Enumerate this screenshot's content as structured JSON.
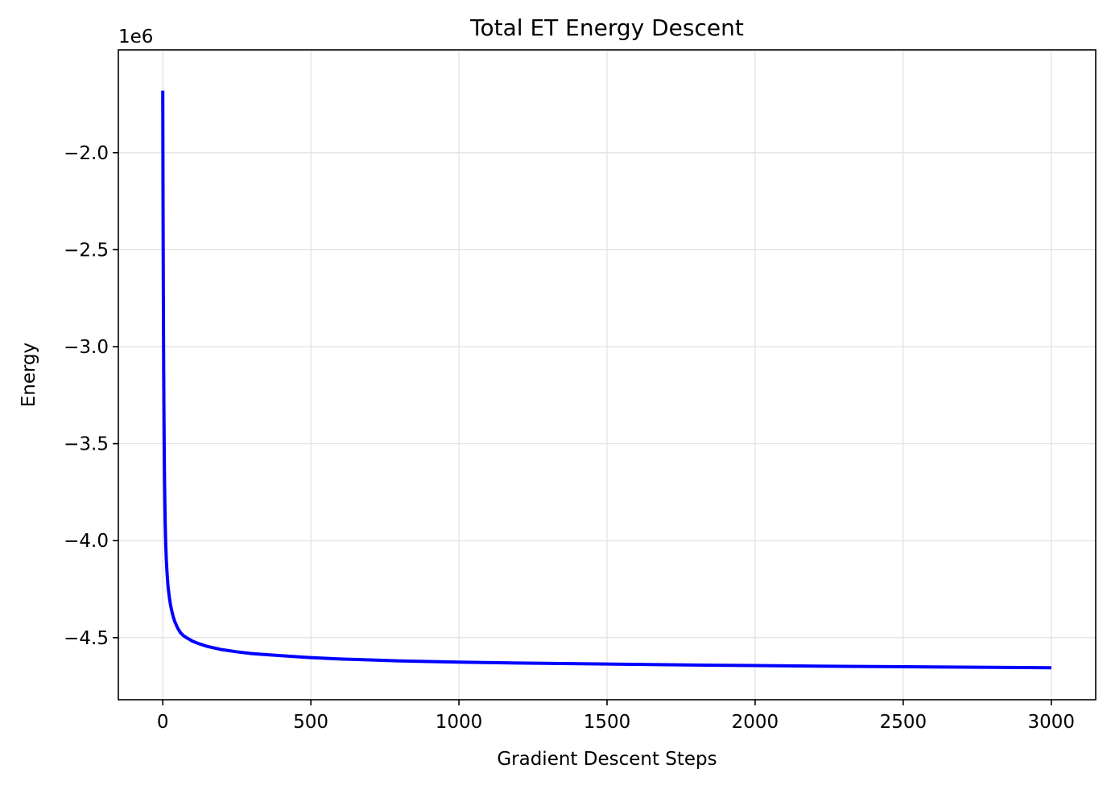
{
  "chart_data": {
    "type": "line",
    "title": "Total ET Energy Descent",
    "xlabel": "Gradient Descent Steps",
    "ylabel": "Energy",
    "y_offset_label": "1e6",
    "y_multiplier": 1000000,
    "xlim": [
      -150,
      3150
    ],
    "ylim": [
      -4.82,
      -1.47
    ],
    "x_ticks": [
      0,
      500,
      1000,
      1500,
      2000,
      2500,
      3000
    ],
    "x_tick_labels": [
      "0",
      "500",
      "1000",
      "1500",
      "2000",
      "2500",
      "3000"
    ],
    "y_ticks": [
      -2.0,
      -2.5,
      -3.0,
      -3.5,
      -4.0,
      -4.5
    ],
    "y_tick_labels": [
      "−2.0",
      "−2.5",
      "−3.0",
      "−3.5",
      "−4.0",
      "−4.5"
    ],
    "grid": true,
    "legend": "none",
    "series": [
      {
        "color": "#0000ff",
        "x": [
          0,
          1,
          2,
          3,
          4,
          5,
          6,
          8,
          10,
          12,
          15,
          18,
          22,
          26,
          30,
          35,
          40,
          50,
          60,
          70,
          80,
          100,
          120,
          150,
          200,
          250,
          300,
          400,
          500,
          600,
          700,
          800,
          1000,
          1200,
          1500,
          1800,
          2000,
          2300,
          2600,
          3000
        ],
        "y": [
          -1.68,
          -2.3,
          -2.75,
          -3.1,
          -3.35,
          -3.55,
          -3.7,
          -3.9,
          -4.02,
          -4.1,
          -4.18,
          -4.24,
          -4.29,
          -4.33,
          -4.36,
          -4.39,
          -4.415,
          -4.45,
          -4.475,
          -4.49,
          -4.5,
          -4.518,
          -4.53,
          -4.545,
          -4.562,
          -4.573,
          -4.582,
          -4.593,
          -4.603,
          -4.61,
          -4.615,
          -4.62,
          -4.626,
          -4.631,
          -4.636,
          -4.641,
          -4.644,
          -4.648,
          -4.651,
          -4.655
        ]
      }
    ]
  }
}
